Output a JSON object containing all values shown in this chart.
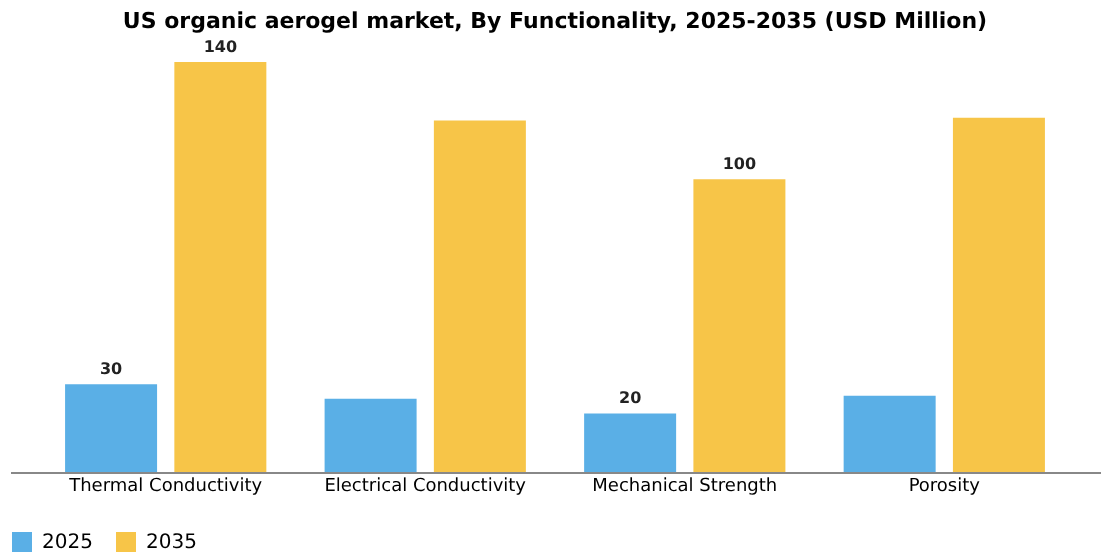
{
  "chart_data": {
    "type": "bar",
    "title": "US organic aerogel market, By Functionality, 2025-2035 (USD Million)",
    "categories": [
      "Thermal Conductivity",
      "Electrical Conductivity",
      "Mechanical Strength",
      "Porosity"
    ],
    "series": [
      {
        "name": "2025",
        "color": "#5aafe6",
        "values": [
          30,
          25,
          20,
          26
        ],
        "value_labels": [
          "30",
          null,
          "20",
          null
        ]
      },
      {
        "name": "2035",
        "color": "#f7c548",
        "values": [
          140,
          120,
          100,
          121
        ],
        "value_labels": [
          "140",
          null,
          "100",
          null
        ]
      }
    ],
    "legend": "bottom",
    "grid": false,
    "tick_labels": "x"
  }
}
